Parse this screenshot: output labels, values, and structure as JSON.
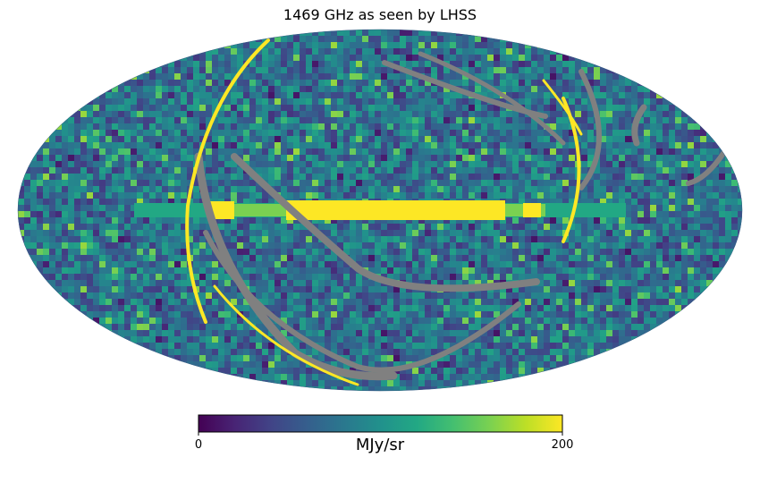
{
  "chart_data": {
    "type": "heatmap",
    "projection": "mollweide",
    "title": "1469 GHz as seen by LHSS",
    "colormap": "viridis",
    "colorbar": {
      "label": "MJy/sr",
      "min": 0,
      "max": 200,
      "tick_labels": [
        "0",
        "200"
      ],
      "orientation": "horizontal",
      "placement": "bottom"
    },
    "bad_value_color": "#808080",
    "description_values": {
      "background_level": 75,
      "galactic_plane_peak": 200,
      "galactic_plane_edge": 160
    },
    "grid": false,
    "legend": "none"
  }
}
